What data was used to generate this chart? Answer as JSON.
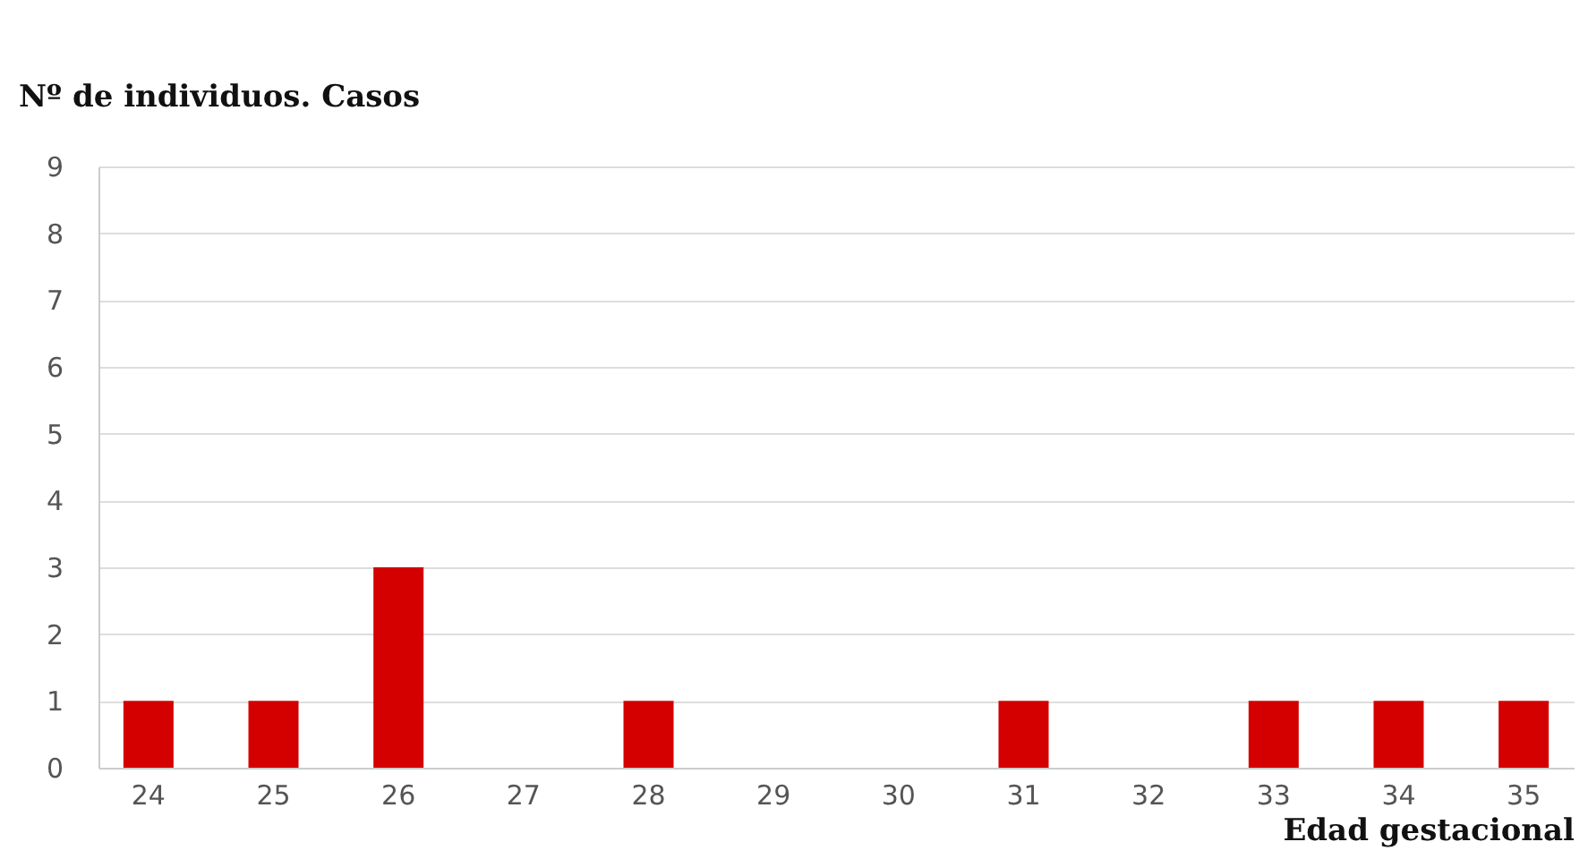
{
  "chart_data": {
    "type": "bar",
    "ylabel": "Nº de individuos. Casos",
    "xlabel": "Edad gestacional",
    "categories": [
      "24",
      "25",
      "26",
      "27",
      "28",
      "29",
      "30",
      "31",
      "32",
      "33",
      "34",
      "35"
    ],
    "values": [
      1,
      1,
      3,
      0,
      1,
      0,
      0,
      1,
      0,
      1,
      1,
      1
    ],
    "color": "#d40000",
    "ylim": [
      0,
      9
    ],
    "yticks": [
      0,
      1,
      2,
      3,
      4,
      5,
      6,
      7,
      8,
      9
    ],
    "grid": "y"
  }
}
